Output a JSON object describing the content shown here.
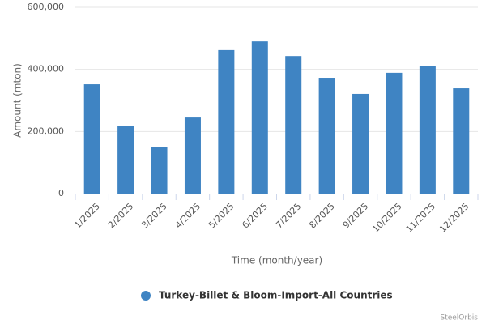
{
  "chart_data": {
    "type": "bar",
    "x_label": "Time (month/year)",
    "y_label": "Amount (mton)",
    "credit": "SteelOrbis",
    "categories": [
      "1/2025",
      "2/2025",
      "3/2025",
      "4/2025",
      "5/2025",
      "6/2025",
      "7/2025",
      "8/2025",
      "9/2025",
      "10/2025",
      "11/2025",
      "12/2025"
    ],
    "series": [
      {
        "name": "Turkey-Billet & Bloom-Import-All Countries",
        "color": "#3f84c3",
        "values": [
          352000,
          219000,
          151000,
          245000,
          462000,
          490000,
          443000,
          373000,
          321000,
          389000,
          412000,
          339000
        ]
      }
    ],
    "ylim": [
      0,
      600000
    ],
    "yticks": [
      0,
      {
        "value": 200000,
        "label": "200,000"
      },
      {
        "value": 400000,
        "label": "400,000"
      },
      {
        "value": 600000,
        "label": "600,000"
      }
    ],
    "grid": true,
    "legend": "bottom"
  }
}
